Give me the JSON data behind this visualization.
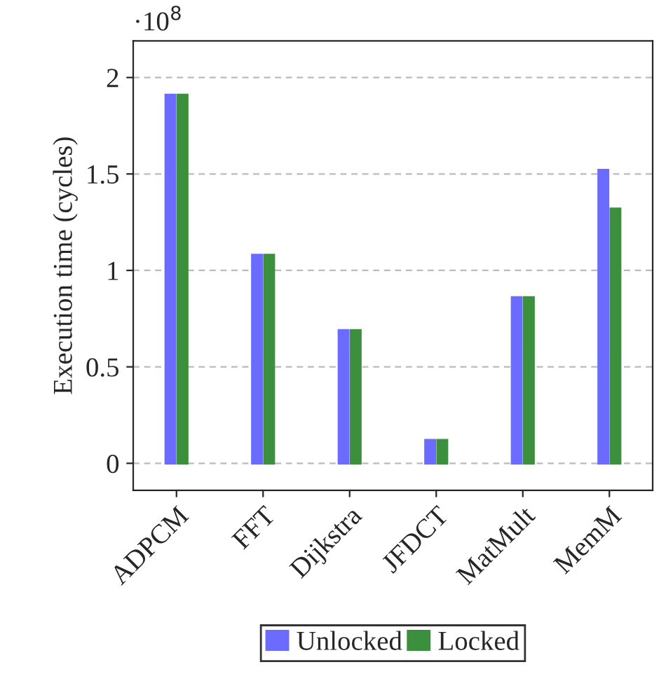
{
  "chart_data": {
    "type": "bar",
    "ylabel": "Execution time (cycles)",
    "annotations": [
      "·10$^{8}$"
    ],
    "categories": [
      "ADPCM",
      "FFT",
      "Dijkstra",
      "JFDCT",
      "MatMult",
      "MemM"
    ],
    "series": [
      {
        "name": "Unlocked",
        "color": "#6b6bff",
        "values": [
          1.91,
          1.08,
          0.69,
          0.12,
          0.86,
          1.52
        ]
      },
      {
        "name": "Locked",
        "color": "#3c8f3c",
        "values": [
          1.91,
          1.08,
          0.69,
          0.12,
          0.86,
          1.32
        ]
      }
    ],
    "ylim": [
      -0.14,
      2.19
    ],
    "yticks": [
      0,
      0.5,
      1,
      1.5,
      2
    ],
    "grid": "y",
    "legend": "bottom"
  }
}
